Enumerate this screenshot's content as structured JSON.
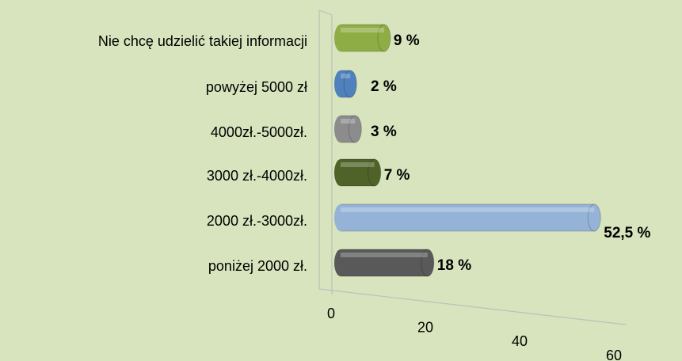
{
  "chart_data": {
    "type": "bar",
    "orientation": "horizontal",
    "categories": [
      "Nie chcę udzielić takiej informacji",
      "powyżej 5000 zł",
      "4000zł.-5000zł.",
      "3000 zł.-4000zł.",
      "2000 zł.-3000zł.",
      "poniżej 2000 zł."
    ],
    "values": [
      9,
      2,
      3,
      7,
      52.5,
      18
    ],
    "value_labels": [
      "9 %",
      "2 %",
      "3 %",
      "7 %",
      "52,5 %",
      "18 %"
    ],
    "colors": [
      "#8fad45",
      "#4f81bd",
      "#8c8c8c",
      "#4f6228",
      "#95b3d7",
      "#595959"
    ],
    "xlim": [
      0,
      60
    ],
    "xticks": [
      0,
      20,
      40,
      60
    ]
  }
}
